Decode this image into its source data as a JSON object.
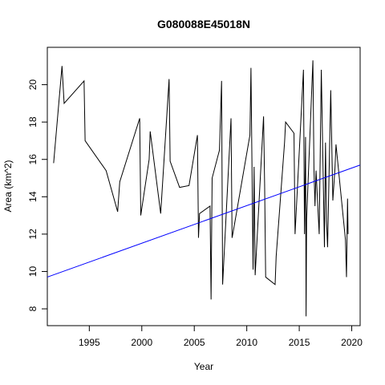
{
  "chart_data": {
    "type": "line",
    "title": "G080088E45018N",
    "xlabel": "Year",
    "ylabel": "Area (km^2)",
    "xlim": [
      1991.0,
      2020.8
    ],
    "ylim": [
      7.1,
      22.0
    ],
    "xticks": [
      1995,
      2000,
      2005,
      2010,
      2015,
      2020
    ],
    "yticks": [
      8,
      10,
      12,
      14,
      16,
      18,
      20
    ],
    "grid": false,
    "legend": "none",
    "series": [
      {
        "color": "#000000",
        "x": [
          1991.6,
          1992.4,
          1992.6,
          1994.5,
          1994.6,
          1996.6,
          1997.7,
          1997.9,
          1999.8,
          1999.9,
          2000.7,
          2000.8,
          2001.8,
          2002.6,
          2002.7,
          2003.6,
          2004.5,
          2005.3,
          2005.4,
          2005.5,
          2006.5,
          2006.6,
          2006.7,
          2007.4,
          2007.6,
          2007.7,
          2008.5,
          2008.6,
          2008.7,
          2010.3,
          2010.4,
          2010.6,
          2010.7,
          2010.8,
          2011.6,
          2011.7,
          2011.8,
          2012.7,
          2012.8,
          2013.6,
          2013.7,
          2014.5,
          2014.6,
          2015.4,
          2015.5,
          2015.6,
          2015.65,
          2015.7,
          2016.3,
          2016.4,
          2016.5,
          2016.6,
          2016.9,
          2017.1,
          2017.4,
          2017.5,
          2017.6,
          2017.7,
          2018.0,
          2018.2,
          2018.4,
          2018.5,
          2019.4,
          2019.5,
          2019.6,
          2019.65
        ],
        "y": [
          15.8,
          21.0,
          19.0,
          20.2,
          17.0,
          15.4,
          13.2,
          14.8,
          18.2,
          13.0,
          16.0,
          17.5,
          13.1,
          20.3,
          15.9,
          14.5,
          14.6,
          17.3,
          11.8,
          13.1,
          13.5,
          8.5,
          15.0,
          16.5,
          20.2,
          9.3,
          18.2,
          11.8,
          12.1,
          17.3,
          20.9,
          10.1,
          15.6,
          9.8,
          18.3,
          14.7,
          9.7,
          9.3,
          10.8,
          16.9,
          18.0,
          17.4,
          12.0,
          20.8,
          12.0,
          17.2,
          7.6,
          12.8,
          21.3,
          15.5,
          13.5,
          15.4,
          12.0,
          20.8,
          11.3,
          16.9,
          12.7,
          11.3,
          19.7,
          13.8,
          15.5,
          16.8,
          11.7,
          9.7,
          13.9,
          12.0
        ]
      },
      {
        "color": "#0000ff",
        "x": [
          1991.0,
          2020.8
        ],
        "y": [
          9.7,
          15.7
        ]
      }
    ]
  }
}
